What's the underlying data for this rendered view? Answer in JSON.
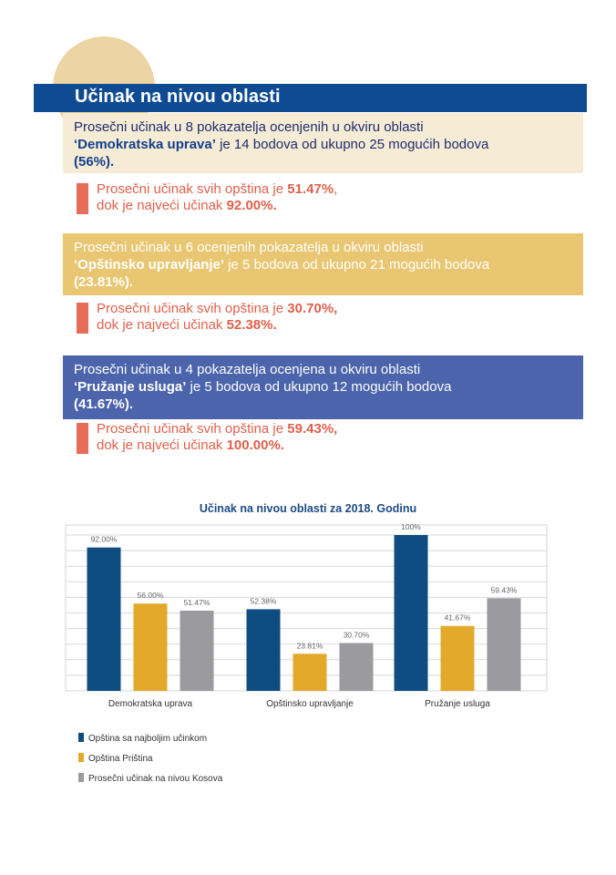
{
  "header": {
    "title": "Učinak na nivou oblasti"
  },
  "blocks": [
    {
      "line1": "Prosečni učinak u 8 pokazatelja ocenjenih u okviru oblasti",
      "area": "‘Demokratska uprava’",
      "line2_rest": " je 14 bodova od ukupno 25 mogućih bodova",
      "pct": "(56%).",
      "note_a": "Prosečni učinak svih opština je ",
      "note_a_val": "51.47%",
      "note_a_end": ",",
      "note_b": "dok je najveći učinak ",
      "note_b_val": "92.00%."
    },
    {
      "line1": "Prosečni učinak u 6 ocenjenih pokazatelja u okviru oblasti",
      "area": "‘Opštinsko upravljanje’",
      "line2_rest": " je 5 bodova od ukupno 21 mogućih bodova",
      "pct": "(23.81%).",
      "note_a": "Prosečni učinak svih opština je ",
      "note_a_val": "30.70%,",
      "note_a_end": "",
      "note_b": "dok je najveći učinak ",
      "note_b_val": "52.38%."
    },
    {
      "line1": "Prosečni učinak u 4 pokazatelja ocenjena u okviru oblasti",
      "area": "‘Pružanje usluga’",
      "line2_rest": " je 5 bodova od ukupno 12 mogućih bodova",
      "pct": "(41.67%).",
      "note_a": "Prosečni učinak svih opština je ",
      "note_a_val": "59.43%,",
      "note_a_end": "",
      "note_b": "dok je najveći učinak ",
      "note_b_val": "100.00%."
    }
  ],
  "colors": {
    "title_bar": "#0e4b93",
    "accent_note": "#e56d5a",
    "series_best": "#0f4c81",
    "series_pristina": "#e3a92b",
    "series_kosovo": "#9a9a9f"
  },
  "chart_data": {
    "type": "bar",
    "title": "Učinak na nivou oblasti za 2018. Godinu",
    "categories": [
      "Demokratska uprava",
      "Opštinsko upravljanje",
      "Pružanje usluga"
    ],
    "series": [
      {
        "name": "Opština sa najboljim učinkom",
        "values": [
          92.0,
          52.38,
          100
        ],
        "labels": [
          "92.00%",
          "52.38%",
          "100%"
        ],
        "color": "#0f4c81"
      },
      {
        "name": "Opština Priština",
        "values": [
          56.0,
          23.81,
          41.67
        ],
        "labels": [
          "56.00%",
          "23.81%",
          "41.67%"
        ],
        "color": "#e3a92b"
      },
      {
        "name": "Prosečni učinak na nivou Kosova",
        "values": [
          51.47,
          30.7,
          59.43
        ],
        "labels": [
          "51.47%",
          "30.70%",
          "59.43%"
        ],
        "color": "#9a9a9f"
      }
    ],
    "ylim": [
      0,
      100
    ],
    "grid": true,
    "legend": "bottom-left"
  }
}
